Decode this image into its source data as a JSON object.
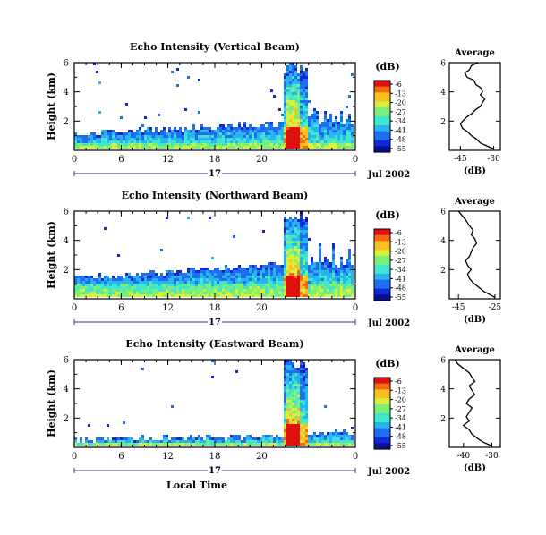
{
  "chart_data": [
    {
      "type": "heatmap",
      "title": "Echo Intensity (Vertical Beam)",
      "ylabel": "Height (km)",
      "y_ticks": [
        "6",
        "4",
        "2"
      ],
      "x_ticks": [
        "0",
        "6",
        "12",
        "18",
        "20",
        "0"
      ],
      "date_day": "17",
      "date_label": "Jul 2002",
      "colorbar_unit": "(dB)",
      "colorbar_ticks": [
        "-6",
        "-13",
        "-20",
        "-27",
        "-34",
        "-41",
        "-48",
        "-55"
      ],
      "average": {
        "title": "Average",
        "xlabel": "(dB)",
        "x_ticks": [
          "-45",
          "-30"
        ],
        "y_ticks": [
          "6",
          "4",
          "2"
        ],
        "profile": [
          [
            -37,
            6.0
          ],
          [
            -40,
            5.8
          ],
          [
            -41,
            5.5
          ],
          [
            -43,
            5.3
          ],
          [
            -42,
            5.0
          ],
          [
            -39,
            4.8
          ],
          [
            -38,
            4.5
          ],
          [
            -36,
            4.3
          ],
          [
            -35,
            4.0
          ],
          [
            -36,
            3.8
          ],
          [
            -34,
            3.5
          ],
          [
            -35,
            3.3
          ],
          [
            -36,
            3.0
          ],
          [
            -38,
            2.8
          ],
          [
            -40,
            2.5
          ],
          [
            -42,
            2.3
          ],
          [
            -44,
            2.0
          ],
          [
            -45,
            1.8
          ],
          [
            -44,
            1.5
          ],
          [
            -42,
            1.3
          ],
          [
            -40,
            1.0
          ],
          [
            -38,
            0.8
          ],
          [
            -36,
            0.5
          ],
          [
            -33,
            0.3
          ],
          [
            -30,
            0.1
          ]
        ]
      },
      "bg_extent": 2.0,
      "fg_extent": 1.3,
      "scatter": 0.25,
      "seed": 11
    },
    {
      "type": "heatmap",
      "title": "Echo Intensity (Northward Beam)",
      "ylabel": "Height (km)",
      "y_ticks": [
        "6",
        "4",
        "2"
      ],
      "x_ticks": [
        "0",
        "6",
        "12",
        "18",
        "20",
        "0"
      ],
      "date_day": "17",
      "date_label": "Jul 2002",
      "colorbar_unit": "(dB)",
      "colorbar_ticks": [
        "-6",
        "-13",
        "-20",
        "-27",
        "-34",
        "-41",
        "-48",
        "-55"
      ],
      "average": {
        "title": "Average",
        "xlabel": "(dB)",
        "x_ticks": [
          "-45",
          "-25"
        ],
        "y_ticks": [
          "6",
          "4",
          "2"
        ],
        "profile": [
          [
            -45,
            6.0
          ],
          [
            -43,
            5.7
          ],
          [
            -41,
            5.4
          ],
          [
            -39,
            5.0
          ],
          [
            -37,
            4.7
          ],
          [
            -38,
            4.4
          ],
          [
            -36,
            4.1
          ],
          [
            -35,
            3.8
          ],
          [
            -37,
            3.5
          ],
          [
            -38,
            3.2
          ],
          [
            -39,
            2.9
          ],
          [
            -41,
            2.6
          ],
          [
            -40,
            2.3
          ],
          [
            -38,
            2.0
          ],
          [
            -40,
            1.7
          ],
          [
            -39,
            1.4
          ],
          [
            -37,
            1.1
          ],
          [
            -34,
            0.8
          ],
          [
            -31,
            0.5
          ],
          [
            -28,
            0.3
          ],
          [
            -25,
            0.1
          ]
        ]
      },
      "bg_extent": 2.6,
      "fg_extent": 2.4,
      "scatter": 0.12,
      "seed": 23
    },
    {
      "type": "heatmap",
      "title": "Echo Intensity (Eastward Beam)",
      "ylabel": "Height (km)",
      "y_ticks": [
        "6",
        "4",
        "2"
      ],
      "x_ticks": [
        "0",
        "6",
        "12",
        "18",
        "20",
        "0"
      ],
      "date_day": "17",
      "date_label": "Jul 2002",
      "xlabel": "Local Time",
      "colorbar_unit": "(dB)",
      "colorbar_ticks": [
        "-6",
        "-13",
        "-20",
        "-27",
        "-34",
        "-41",
        "-48",
        "-55"
      ],
      "average": {
        "title": "Average",
        "xlabel": "(dB)",
        "x_ticks": [
          "-40",
          "-30"
        ],
        "y_ticks": [
          "6",
          "4",
          "2"
        ],
        "profile": [
          [
            -43,
            6.0
          ],
          [
            -42,
            5.7
          ],
          [
            -40,
            5.4
          ],
          [
            -38,
            5.1
          ],
          [
            -37,
            4.8
          ],
          [
            -36,
            4.5
          ],
          [
            -38,
            4.2
          ],
          [
            -37,
            3.9
          ],
          [
            -36,
            3.6
          ],
          [
            -38,
            3.3
          ],
          [
            -39,
            3.0
          ],
          [
            -37,
            2.7
          ],
          [
            -38,
            2.4
          ],
          [
            -39,
            2.1
          ],
          [
            -38,
            1.8
          ],
          [
            -40,
            1.5
          ],
          [
            -38,
            1.2
          ],
          [
            -37,
            0.9
          ],
          [
            -35,
            0.6
          ],
          [
            -33,
            0.35
          ],
          [
            -30,
            0.1
          ]
        ]
      },
      "bg_extent": 0.8,
      "fg_extent": 0.5,
      "scatter": 0.1,
      "seed": 37
    }
  ]
}
